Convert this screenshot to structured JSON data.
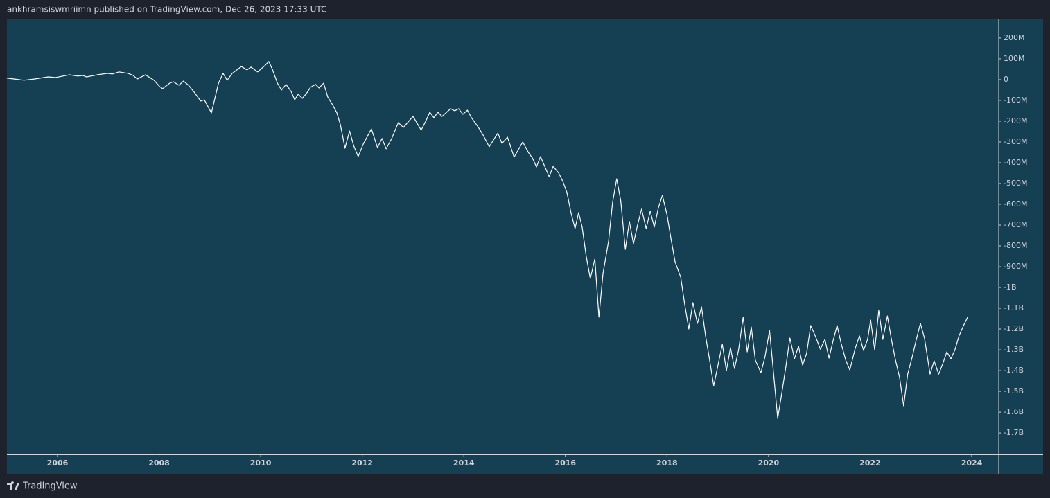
{
  "chart_data": {
    "type": "line",
    "title": "ankhramsiswmriimn published on TradingView.com, Dec 26, 2023 17:33 UTC",
    "color": "#ffffff",
    "grid": false,
    "xlim": [
      2005.004,
      2024.532
    ],
    "ylim": [
      -1803,
      293
    ],
    "xticks": [
      2006,
      2008,
      2010,
      2012,
      2014,
      2016,
      2018,
      2020,
      2022,
      2024
    ],
    "yticks": [
      {
        "value": 200,
        "label": "200M"
      },
      {
        "value": 100,
        "label": "100M"
      },
      0,
      {
        "value": -100,
        "label": "-100M"
      },
      {
        "value": -200,
        "label": "-200M"
      },
      {
        "value": -300,
        "label": "-300M"
      },
      {
        "value": -400,
        "label": "-400M"
      },
      {
        "value": -500,
        "label": "-500M"
      },
      {
        "value": -600,
        "label": "-600M"
      },
      {
        "value": -700,
        "label": "-700M"
      },
      {
        "value": -800,
        "label": "-800M"
      },
      {
        "value": -900,
        "label": "-900M"
      },
      {
        "value": -1000,
        "label": "-1B"
      },
      {
        "value": -1100,
        "label": "-1.1B"
      },
      {
        "value": -1200,
        "label": "-1.2B"
      },
      {
        "value": -1300,
        "label": "-1.3B"
      },
      {
        "value": -1400,
        "label": "-1.4B"
      },
      {
        "value": -1500,
        "label": "-1.5B"
      },
      {
        "value": -1600,
        "label": "-1.6B"
      },
      {
        "value": -1700,
        "label": "-1.7B"
      }
    ],
    "x": [
      2005.0,
      2005.14,
      2005.34,
      2005.55,
      2005.82,
      2005.96,
      2006.23,
      2006.4,
      2006.5,
      2006.57,
      2006.78,
      2006.98,
      2007.08,
      2007.21,
      2007.39,
      2007.49,
      2007.57,
      2007.73,
      2007.9,
      2008.01,
      2008.07,
      2008.21,
      2008.28,
      2008.39,
      2008.48,
      2008.58,
      2008.69,
      2008.82,
      2008.89,
      2009.03,
      2009.17,
      2009.26,
      2009.34,
      2009.44,
      2009.62,
      2009.73,
      2009.81,
      2009.94,
      2010.08,
      2010.16,
      2010.23,
      2010.33,
      2010.41,
      2010.5,
      2010.6,
      2010.67,
      2010.74,
      2010.82,
      2010.9,
      2010.98,
      2011.08,
      2011.15,
      2011.24,
      2011.32,
      2011.42,
      2011.5,
      2011.57,
      2011.66,
      2011.75,
      2011.83,
      2011.92,
      2012.02,
      2012.18,
      2012.3,
      2012.39,
      2012.47,
      2012.58,
      2012.71,
      2012.81,
      2013.0,
      2013.16,
      2013.25,
      2013.33,
      2013.41,
      2013.49,
      2013.57,
      2013.74,
      2013.82,
      2013.9,
      2013.98,
      2014.07,
      2014.15,
      2014.28,
      2014.38,
      2014.5,
      2014.67,
      2014.75,
      2014.86,
      2014.99,
      2015.16,
      2015.27,
      2015.35,
      2015.43,
      2015.51,
      2015.68,
      2015.76,
      2015.87,
      2015.95,
      2016.03,
      2016.11,
      2016.19,
      2016.26,
      2016.33,
      2016.41,
      2016.49,
      2016.58,
      2016.66,
      2016.74,
      2016.85,
      2016.93,
      2017.01,
      2017.09,
      2017.18,
      2017.26,
      2017.34,
      2017.42,
      2017.5,
      2017.59,
      2017.67,
      2017.75,
      2017.83,
      2017.91,
      2018.0,
      2018.08,
      2018.16,
      2018.27,
      2018.35,
      2018.43,
      2018.51,
      2018.6,
      2018.68,
      2018.76,
      2018.84,
      2018.92,
      2019.09,
      2019.17,
      2019.25,
      2019.33,
      2019.41,
      2019.5,
      2019.58,
      2019.66,
      2019.74,
      2019.85,
      2019.93,
      2020.02,
      2020.1,
      2020.18,
      2020.26,
      2020.34,
      2020.42,
      2020.51,
      2020.59,
      2020.67,
      2020.75,
      2020.83,
      2020.92,
      2021.02,
      2021.11,
      2021.19,
      2021.27,
      2021.35,
      2021.43,
      2021.52,
      2021.6,
      2021.71,
      2021.79,
      2021.87,
      2021.95,
      2022.01,
      2022.09,
      2022.17,
      2022.25,
      2022.34,
      2022.42,
      2022.5,
      2022.58,
      2022.66,
      2022.74,
      2022.83,
      2022.91,
      2022.99,
      2023.07,
      2023.18,
      2023.26,
      2023.35,
      2023.43,
      2023.51,
      2023.59,
      2023.67,
      2023.75,
      2023.84,
      2023.92
    ],
    "values": [
      7,
      3,
      -3,
      3,
      13,
      10,
      23,
      17,
      20,
      13,
      23,
      30,
      27,
      37,
      30,
      20,
      3,
      23,
      -3,
      -33,
      -43,
      -17,
      -10,
      -27,
      -7,
      -27,
      -60,
      -103,
      -97,
      -160,
      -17,
      30,
      -3,
      30,
      63,
      47,
      60,
      37,
      67,
      87,
      50,
      -17,
      -50,
      -23,
      -57,
      -97,
      -70,
      -90,
      -67,
      -37,
      -23,
      -40,
      -17,
      -83,
      -123,
      -160,
      -217,
      -330,
      -247,
      -317,
      -370,
      -310,
      -237,
      -327,
      -283,
      -333,
      -283,
      -207,
      -230,
      -177,
      -243,
      -200,
      -157,
      -183,
      -157,
      -177,
      -140,
      -150,
      -140,
      -167,
      -147,
      -183,
      -227,
      -267,
      -323,
      -257,
      -307,
      -277,
      -373,
      -300,
      -350,
      -377,
      -420,
      -370,
      -467,
      -417,
      -450,
      -490,
      -543,
      -640,
      -717,
      -640,
      -710,
      -850,
      -957,
      -863,
      -1143,
      -933,
      -777,
      -590,
      -477,
      -583,
      -817,
      -683,
      -790,
      -700,
      -623,
      -717,
      -633,
      -710,
      -617,
      -557,
      -650,
      -767,
      -877,
      -950,
      -1083,
      -1200,
      -1073,
      -1173,
      -1093,
      -1233,
      -1350,
      -1473,
      -1273,
      -1400,
      -1290,
      -1390,
      -1300,
      -1143,
      -1310,
      -1190,
      -1350,
      -1410,
      -1333,
      -1207,
      -1417,
      -1630,
      -1510,
      -1383,
      -1243,
      -1343,
      -1283,
      -1373,
      -1317,
      -1183,
      -1233,
      -1297,
      -1250,
      -1340,
      -1257,
      -1183,
      -1270,
      -1350,
      -1397,
      -1290,
      -1233,
      -1303,
      -1250,
      -1157,
      -1300,
      -1110,
      -1250,
      -1137,
      -1250,
      -1350,
      -1433,
      -1570,
      -1417,
      -1333,
      -1250,
      -1173,
      -1243,
      -1417,
      -1353,
      -1417,
      -1367,
      -1310,
      -1343,
      -1300,
      -1233,
      -1183,
      -1143
    ]
  },
  "footer": {
    "brand": "TradingView"
  }
}
